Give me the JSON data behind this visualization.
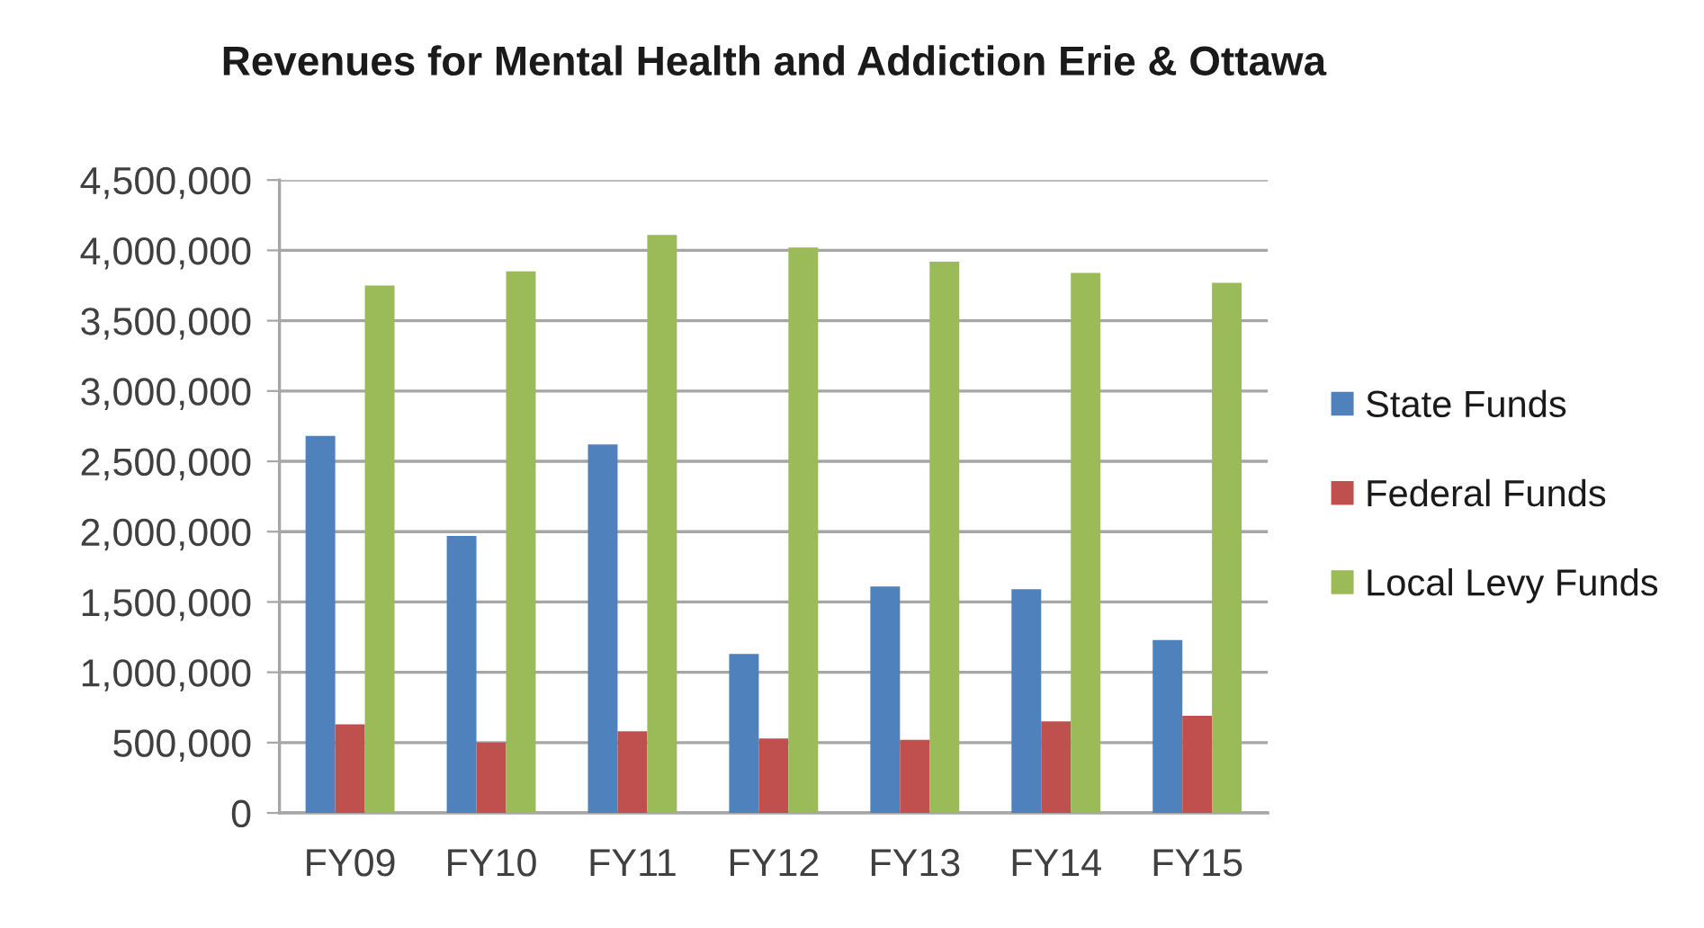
{
  "chart_data": {
    "type": "bar",
    "title": "Revenues for Mental Health and Addiction Erie & Ottawa",
    "categories": [
      "FY09",
      "FY10",
      "FY11",
      "FY12",
      "FY13",
      "FY14",
      "FY15"
    ],
    "series": [
      {
        "name": "State Funds",
        "color": "#4f81bd",
        "values": [
          2680000,
          1970000,
          2620000,
          1130000,
          1610000,
          1590000,
          1230000
        ]
      },
      {
        "name": "Federal Funds",
        "color": "#c0504d",
        "values": [
          630000,
          500000,
          580000,
          530000,
          520000,
          650000,
          690000
        ]
      },
      {
        "name": "Local Levy Funds",
        "color": "#9bbb59",
        "values": [
          3750000,
          3850000,
          4110000,
          4020000,
          3920000,
          3840000,
          3770000
        ]
      }
    ],
    "ylim": [
      0,
      4500000
    ],
    "yticks": [
      0,
      {
        "value": 500000,
        "label": "500,000"
      },
      {
        "value": 1000000,
        "label": "1,000,000"
      },
      {
        "value": 1500000,
        "label": "1,500,000"
      },
      {
        "value": 2000000,
        "label": "2,000,000"
      },
      {
        "value": 2500000,
        "label": "2,500,000"
      },
      {
        "value": 3000000,
        "label": "3,000,000"
      },
      {
        "value": 3500000,
        "label": "3,500,000"
      },
      {
        "value": 4000000,
        "label": "4,000,000"
      },
      {
        "value": 4500000,
        "label": "4,500,000"
      }
    ],
    "grid": "y",
    "legend": "right"
  }
}
